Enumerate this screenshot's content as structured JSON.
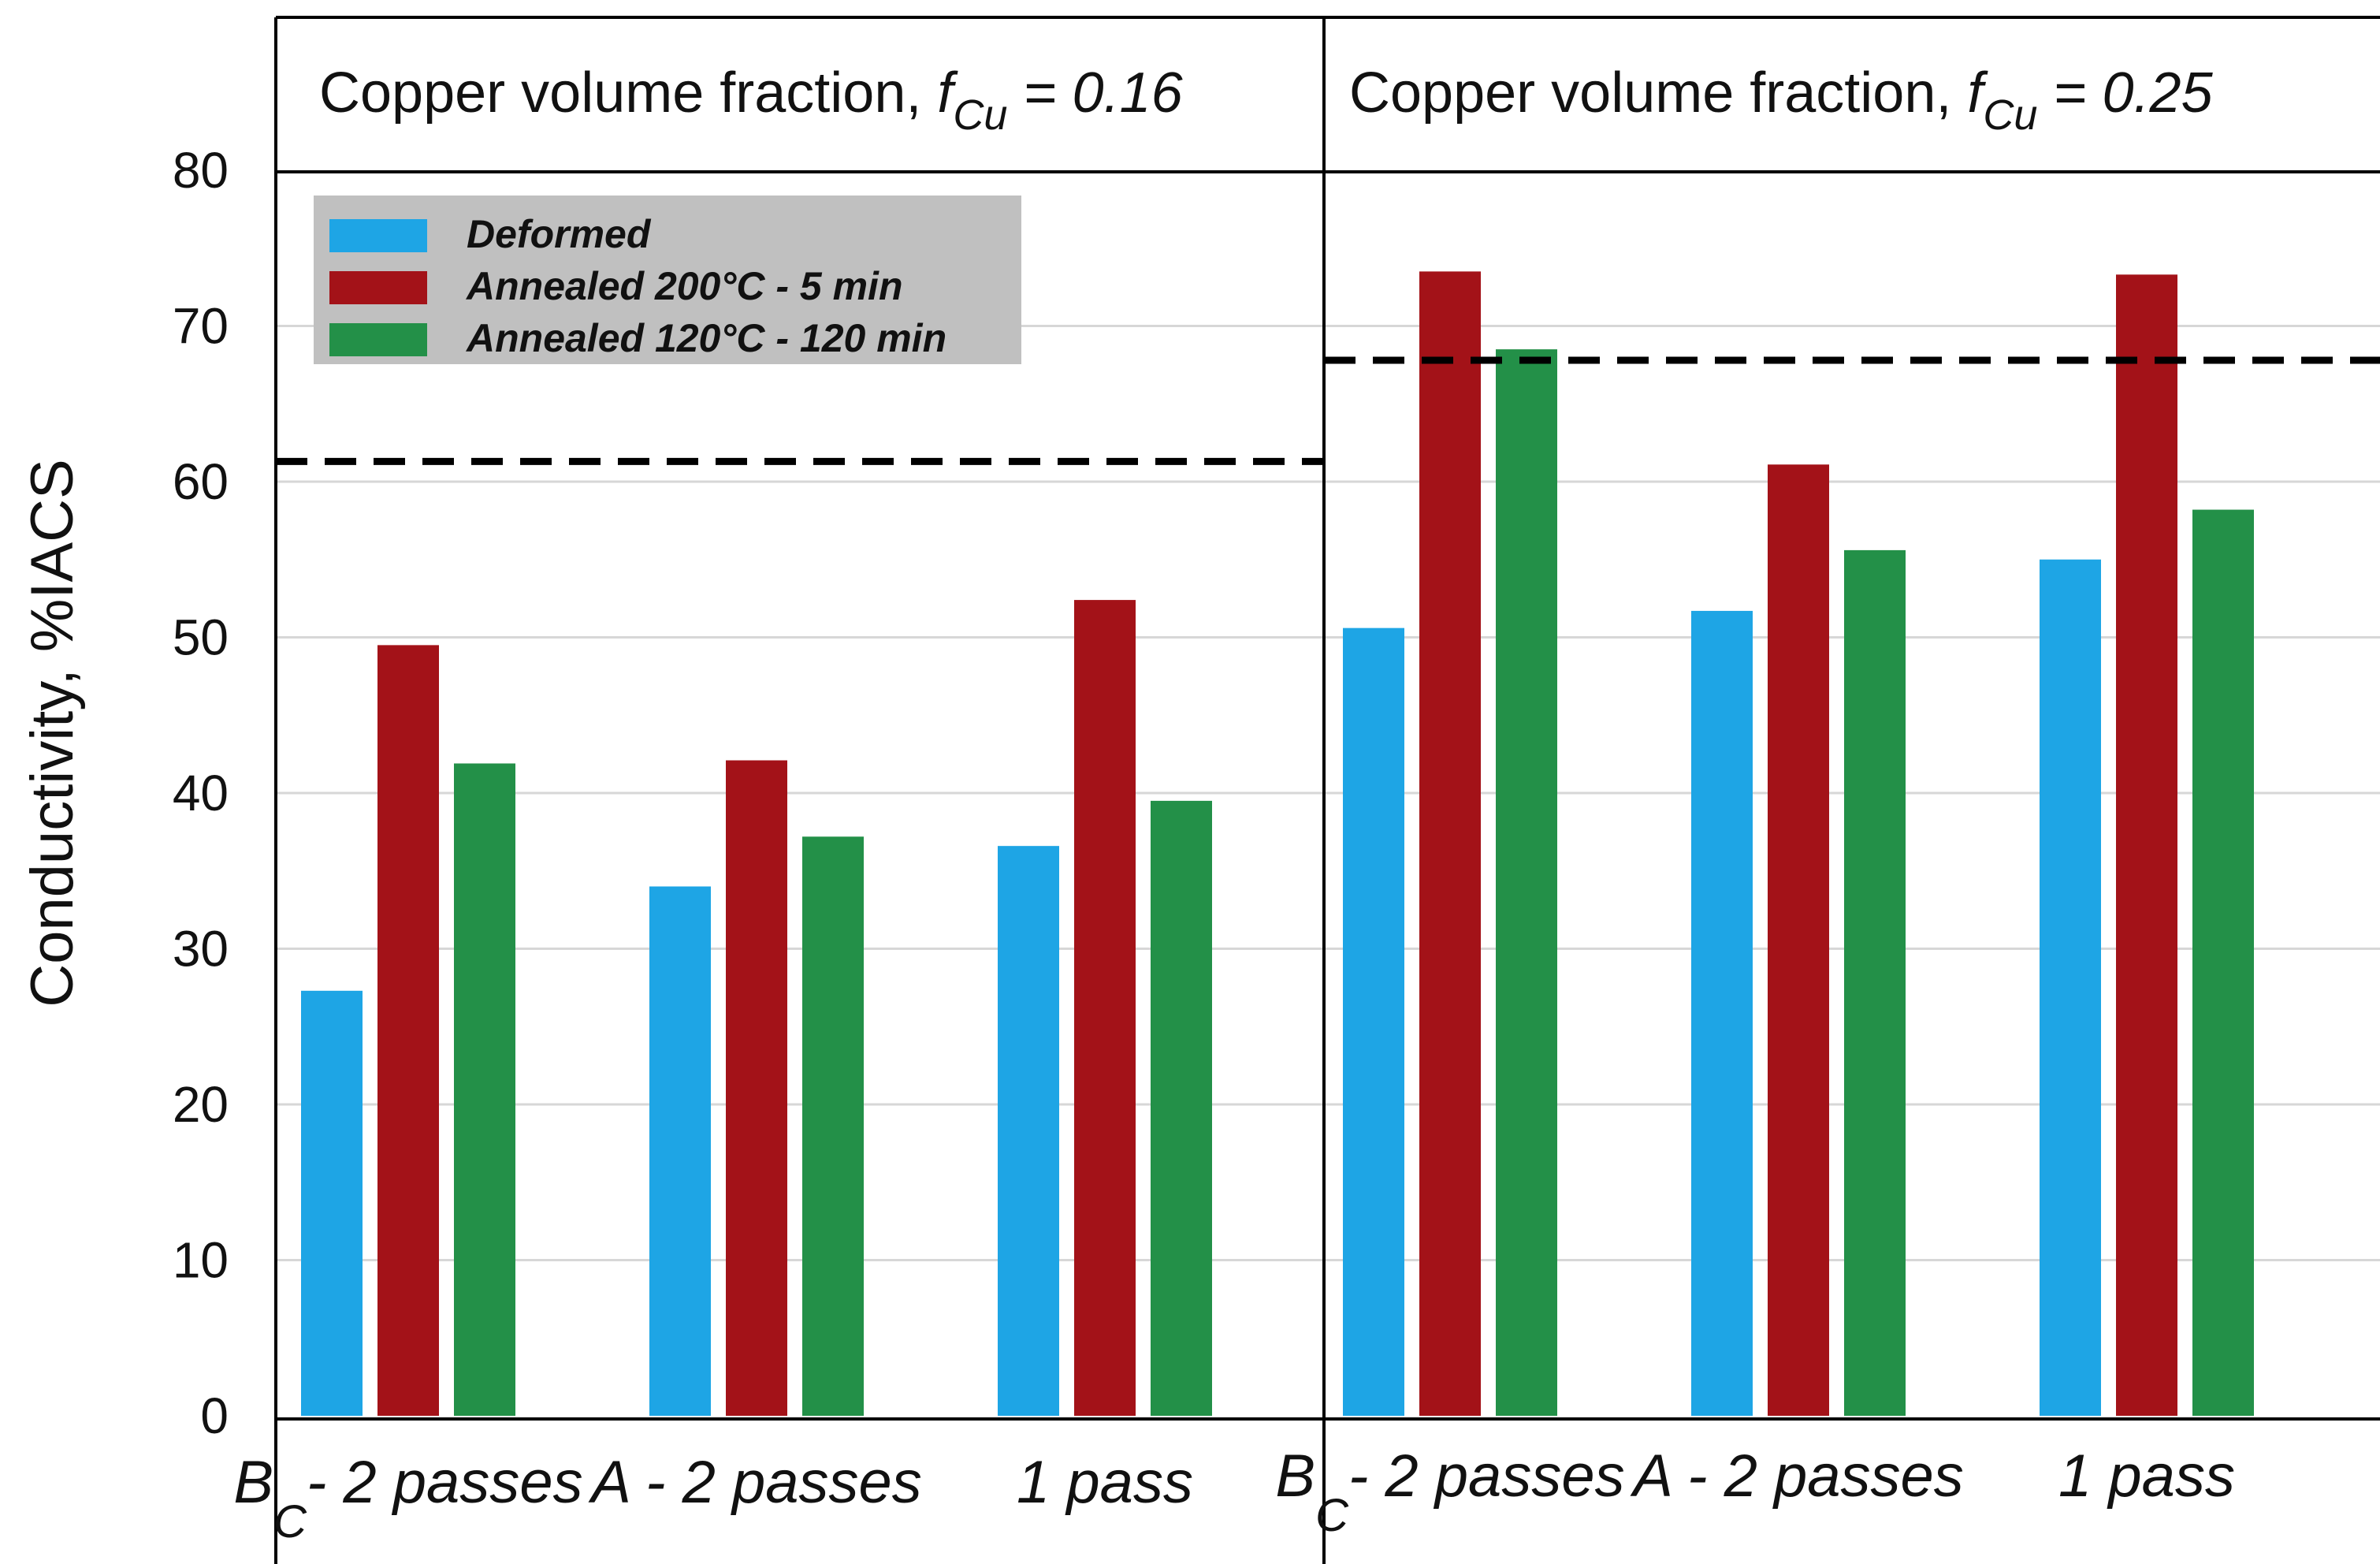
{
  "chart_data": {
    "type": "bar",
    "ylabel": "Conductivity, %IACS",
    "ylim": [
      0,
      80
    ],
    "yticks": [
      "0",
      "10",
      "20",
      "30",
      "40",
      "50",
      "60",
      "70",
      "80"
    ],
    "grid": true,
    "legend": {
      "placement": "top-left",
      "entries": [
        "Deformed",
        "Annealed 200°C - 5 min",
        "Annealed 120°C - 120 min"
      ]
    },
    "colors": [
      "#1ea5e5",
      "#a31218",
      "#239048"
    ],
    "panels": [
      {
        "title_prefix": "Copper volume fraction, ",
        "title_var": "f",
        "title_sub": "Cu",
        "title_value": " = 0.16",
        "categories": [
          {
            "main": "B",
            "sub": "C",
            "rest": "- 2 passes"
          },
          {
            "main": "A - 2 passes",
            "sub": "",
            "rest": ""
          },
          {
            "main": "1 pass",
            "sub": "",
            "rest": ""
          }
        ],
        "series": [
          {
            "name": "Deformed",
            "values": [
              27.3,
              34.0,
              36.6
            ]
          },
          {
            "name": "Annealed 200°C - 5 min",
            "values": [
              49.5,
              42.1,
              52.4
            ]
          },
          {
            "name": "Annealed 120°C - 120 min",
            "values": [
              41.9,
              37.2,
              39.5
            ]
          }
        ],
        "reference_line": 61.3
      },
      {
        "title_prefix": "Copper volume fraction, ",
        "title_var": "f",
        "title_sub": "Cu",
        "title_value": " = 0.25",
        "categories": [
          {
            "main": "B",
            "sub": "C",
            "rest": "- 2 passes"
          },
          {
            "main": "A - 2 passes",
            "sub": "",
            "rest": ""
          },
          {
            "main": "1 pass",
            "sub": "",
            "rest": ""
          }
        ],
        "series": [
          {
            "name": "Deformed",
            "values": [
              50.6,
              51.7,
              55.0
            ]
          },
          {
            "name": "Annealed 200°C - 5 min",
            "values": [
              73.5,
              61.1,
              73.3
            ]
          },
          {
            "name": "Annealed 120°C - 120 min",
            "values": [
              68.5,
              55.6,
              58.2
            ]
          }
        ],
        "reference_line": 67.8
      }
    ]
  }
}
